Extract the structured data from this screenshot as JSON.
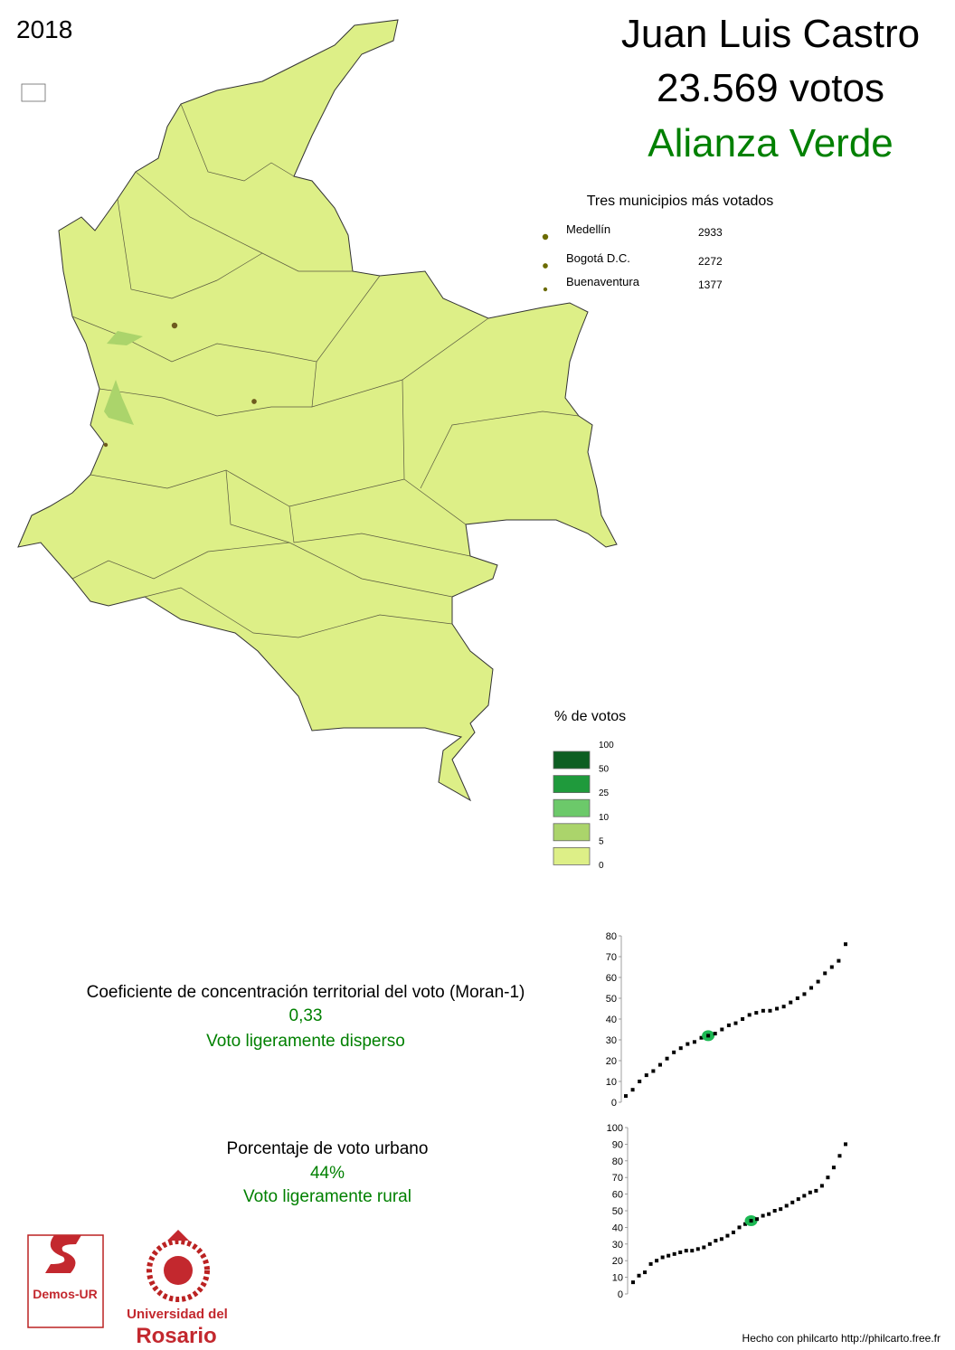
{
  "year": "2018",
  "header": {
    "candidate": "Juan Luis Castro",
    "votes": "23.569 votos",
    "party": "Alianza Verde"
  },
  "top_municipalities": {
    "title": "Tres municipios más votados",
    "items": [
      {
        "name": "Medellín",
        "votes": 2933
      },
      {
        "name": "Bogotá D.C.",
        "votes": 2272
      },
      {
        "name": "Buenaventura",
        "votes": 1377
      }
    ]
  },
  "legend": {
    "title": "% de votos",
    "breaks": [
      100,
      50,
      25,
      10,
      5,
      0
    ],
    "colors": [
      "#0d5e22",
      "#1f9a3c",
      "#6cc96a",
      "#abd46b",
      "#ddef87"
    ]
  },
  "moran": {
    "label": "Coeficiente de concentración territorial del voto (Moran-1)",
    "value": "0,33",
    "description": "Voto ligeramente disperso"
  },
  "urban": {
    "label": "Porcentaje de voto urbano",
    "value": "44%",
    "description": "Voto ligeramente rural"
  },
  "chart_data": [
    {
      "type": "scatter",
      "ylim": [
        0,
        80
      ],
      "yticks": [
        0,
        10,
        20,
        30,
        40,
        50,
        60,
        70,
        80
      ],
      "color": "#000000",
      "highlight_color": "#1db954",
      "highlight_index": 12,
      "values": [
        3,
        6,
        10,
        13,
        15,
        18,
        21,
        24,
        26,
        28,
        29,
        31,
        32,
        33,
        35,
        37,
        38,
        40,
        42,
        43,
        44,
        44,
        45,
        46,
        48,
        50,
        52,
        55,
        58,
        62,
        65,
        68,
        76
      ]
    },
    {
      "type": "scatter",
      "ylim": [
        0,
        100
      ],
      "yticks": [
        0,
        10,
        20,
        30,
        40,
        50,
        60,
        70,
        80,
        90,
        100
      ],
      "color": "#000000",
      "highlight_color": "#1db954",
      "highlight_index": 20,
      "values": [
        7,
        11,
        13,
        18,
        20,
        22,
        23,
        24,
        25,
        26,
        26,
        27,
        28,
        30,
        32,
        33,
        35,
        37,
        40,
        42,
        44,
        45,
        47,
        48,
        50,
        51,
        53,
        55,
        57,
        59,
        61,
        62,
        65,
        70,
        76,
        83,
        90
      ]
    }
  ],
  "logos": {
    "demos": "Demos-UR",
    "university_line1": "Universidad del",
    "university_line2": "Rosario"
  },
  "footer": "Hecho con philcarto http://philcarto.free.fr"
}
